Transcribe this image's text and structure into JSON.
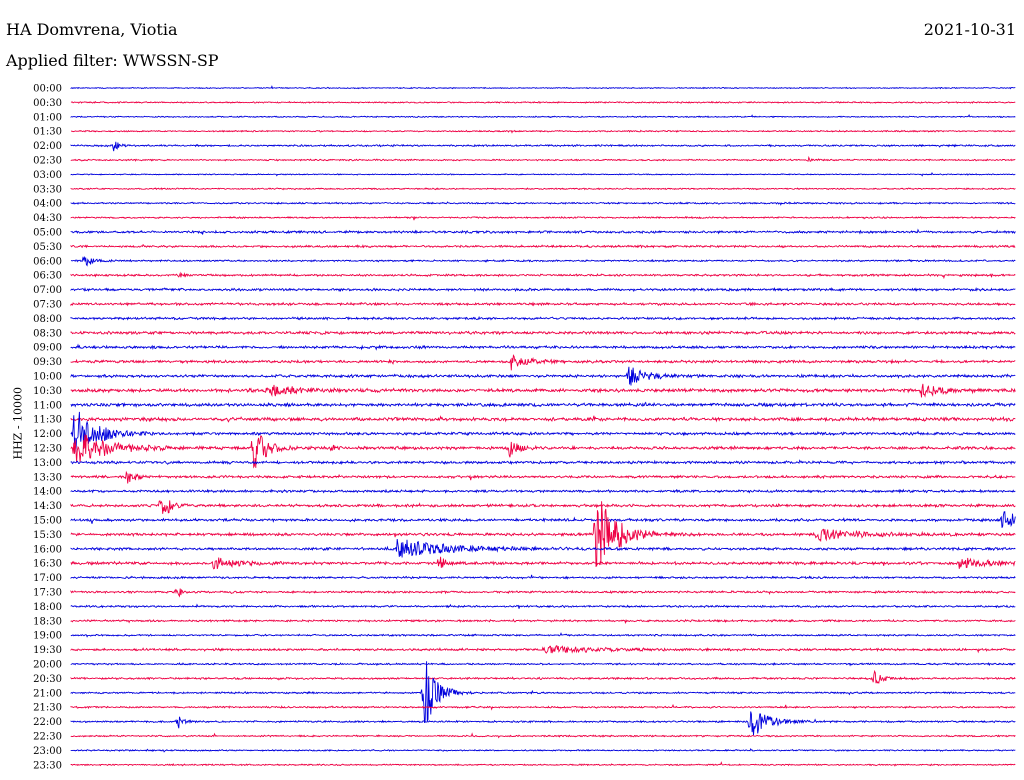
{
  "header": {
    "station": "HA Domvrena, Viotia",
    "date": "2021-10-31",
    "filter_label": "Applied filter: WWSSN-SP"
  },
  "chart_data": {
    "type": "line",
    "title": "HA Domvrena, Viotia",
    "ylabel": "HHZ - 10000",
    "colors": [
      "#0000dd",
      "#ee0044"
    ],
    "rows": [
      "00:00",
      "00:30",
      "01:00",
      "01:30",
      "02:00",
      "02:30",
      "03:00",
      "03:30",
      "04:00",
      "04:30",
      "05:00",
      "05:30",
      "06:00",
      "06:30",
      "07:00",
      "07:30",
      "08:00",
      "08:30",
      "09:00",
      "09:30",
      "10:00",
      "10:30",
      "11:00",
      "11:30",
      "12:00",
      "12:30",
      "13:00",
      "13:30",
      "14:00",
      "14:30",
      "15:00",
      "15:30",
      "16:00",
      "16:30",
      "17:00",
      "17:30",
      "18:00",
      "18:30",
      "19:00",
      "19:30",
      "20:00",
      "20:30",
      "21:00",
      "21:30",
      "22:00",
      "22:30",
      "23:00",
      "23:30"
    ],
    "noise": [
      0.6,
      0.8,
      0.7,
      0.8,
      1.0,
      0.9,
      0.6,
      0.8,
      0.9,
      0.9,
      1.3,
      1.2,
      1.0,
      1.2,
      1.4,
      1.4,
      1.3,
      1.6,
      1.5,
      1.5,
      1.6,
      1.9,
      1.8,
      1.9,
      1.6,
      1.7,
      1.5,
      1.4,
      1.4,
      1.6,
      1.5,
      1.6,
      1.5,
      1.6,
      1.2,
      1.2,
      1.1,
      1.1,
      1.0,
      1.3,
      1.0,
      1.1,
      1.0,
      1.0,
      1.0,
      0.9,
      0.8,
      0.8
    ],
    "events": [
      {
        "row": "02:00",
        "t": 0.045,
        "amp": 5,
        "dur": 0.006
      },
      {
        "row": "02:30",
        "t": 0.78,
        "amp": 4,
        "dur": 0.004
      },
      {
        "row": "06:00",
        "t": 0.014,
        "amp": 7,
        "dur": 0.008
      },
      {
        "row": "06:30",
        "t": 0.115,
        "amp": 4,
        "dur": 0.004
      },
      {
        "row": "09:30",
        "t": 0.465,
        "amp": 8,
        "dur": 0.016
      },
      {
        "row": "10:00",
        "t": 0.59,
        "amp": 10,
        "dur": 0.016
      },
      {
        "row": "10:30",
        "t": 0.205,
        "amp": 6,
        "dur": 0.03
      },
      {
        "row": "10:30",
        "t": 0.9,
        "amp": 6,
        "dur": 0.02
      },
      {
        "row": "12:00",
        "t": 0.002,
        "amp": 30,
        "dur": 0.02
      },
      {
        "row": "12:30",
        "t": 0.004,
        "amp": 18,
        "dur": 0.03
      },
      {
        "row": "12:30",
        "t": 0.193,
        "amp": 25,
        "dur": 0.012
      },
      {
        "row": "12:30",
        "t": 0.463,
        "amp": 10,
        "dur": 0.008
      },
      {
        "row": "12:30",
        "t": 0.275,
        "amp": 5,
        "dur": 0.005
      },
      {
        "row": "13:30",
        "t": 0.058,
        "amp": 8,
        "dur": 0.008
      },
      {
        "row": "14:30",
        "t": 0.095,
        "amp": 18,
        "dur": 0.008
      },
      {
        "row": "15:00",
        "t": 0.985,
        "amp": 8,
        "dur": 0.035
      },
      {
        "row": "15:30",
        "t": 0.555,
        "amp": 45,
        "dur": 0.02
      },
      {
        "row": "15:30",
        "t": 0.79,
        "amp": 6,
        "dur": 0.04
      },
      {
        "row": "16:00",
        "t": 0.345,
        "amp": 10,
        "dur": 0.05
      },
      {
        "row": "16:30",
        "t": 0.15,
        "amp": 7,
        "dur": 0.02
      },
      {
        "row": "16:30",
        "t": 0.39,
        "amp": 10,
        "dur": 0.005
      },
      {
        "row": "16:30",
        "t": 0.94,
        "amp": 5,
        "dur": 0.03
      },
      {
        "row": "17:30",
        "t": 0.112,
        "amp": 6,
        "dur": 0.005
      },
      {
        "row": "19:30",
        "t": 0.5,
        "amp": 4,
        "dur": 0.05
      },
      {
        "row": "20:30",
        "t": 0.848,
        "amp": 9,
        "dur": 0.008
      },
      {
        "row": "21:00",
        "t": 0.373,
        "amp": 42,
        "dur": 0.012
      },
      {
        "row": "22:00",
        "t": 0.113,
        "amp": 8,
        "dur": 0.005
      },
      {
        "row": "22:00",
        "t": 0.718,
        "amp": 20,
        "dur": 0.016
      }
    ]
  }
}
